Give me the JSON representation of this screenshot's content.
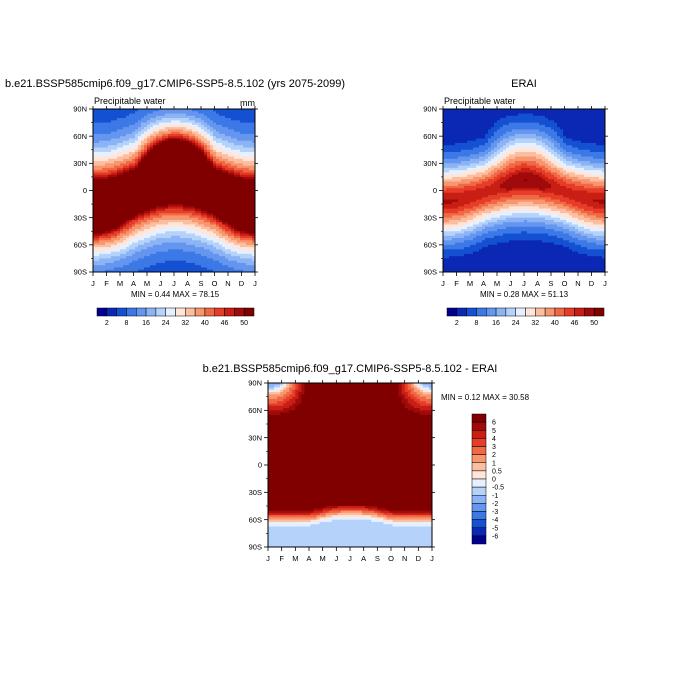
{
  "colors": {
    "ramp": [
      "#00008c",
      "#0a28b4",
      "#1450d2",
      "#3c78e6",
      "#6496f0",
      "#8cb4f5",
      "#b4d2fa",
      "#e6f0ff",
      "#ffe6d8",
      "#fcbea0",
      "#f8966e",
      "#f06946",
      "#e63c28",
      "#c81e14",
      "#a00a0a",
      "#800000"
    ],
    "diff_ramp": [
      "#00008c",
      "#0a28b4",
      "#1450d2",
      "#3c78e6",
      "#6496f0",
      "#8cb4f5",
      "#b4d2fa",
      "#e6f0ff",
      "#ffe6d8",
      "#fcbea0",
      "#f8966e",
      "#f06946",
      "#e63c28",
      "#c81e14",
      "#a00a0a",
      "#800000"
    ]
  },
  "chart_data": [
    {
      "type": "heatmap",
      "title": "b.e21.BSSP585cmip6.f09_g17.CMIP6-SSP5-8.5.102 (yrs 2075-2099)",
      "subtitle": "Precipitable water",
      "units": "mm",
      "x_ticks": [
        "J",
        "F",
        "M",
        "A",
        "M",
        "J",
        "J",
        "A",
        "S",
        "O",
        "N",
        "D",
        "J"
      ],
      "y_ticks": [
        "90N",
        "60N",
        "30N",
        "0",
        "30S",
        "60S",
        "90S"
      ],
      "ylim": [
        -90,
        90
      ],
      "min_max_text": "MIN =   0.44 MAX =  78.15",
      "min": 0.44,
      "max": 78.15,
      "colorbar_labels": [
        "2",
        "8",
        "16",
        "24",
        "32",
        "40",
        "46",
        "50"
      ],
      "field": {
        "eq_value": 62,
        "pole_value": 4,
        "width_deg": 38,
        "itcz_amp_deg": 12,
        "nh_boost": 22,
        "peak_month": 7.1
      }
    },
    {
      "type": "heatmap",
      "title": "ERAI",
      "subtitle": "Precipitable water",
      "x_ticks": [
        "J",
        "F",
        "M",
        "A",
        "M",
        "J",
        "J",
        "A",
        "S",
        "O",
        "N",
        "D",
        "J"
      ],
      "y_ticks": [
        "90N",
        "60N",
        "30N",
        "0",
        "30S",
        "60S",
        "90S"
      ],
      "ylim": [
        -90,
        90
      ],
      "min_max_text": "MIN =   0.28 MAX =  51.13",
      "min": 0.28,
      "max": 51.13,
      "colorbar_labels": [
        "2",
        "8",
        "16",
        "24",
        "32",
        "40",
        "46",
        "50"
      ],
      "field": {
        "eq_value": 47,
        "pole_value": 2,
        "width_deg": 26,
        "itcz_amp_deg": 8,
        "nh_boost": 14,
        "peak_month": 7.1
      }
    },
    {
      "type": "heatmap",
      "title": "b.e21.BSSP585cmip6.f09_g17.CMIP6-SSP5-8.5.102 - ERAI",
      "x_ticks": [
        "J",
        "F",
        "M",
        "A",
        "M",
        "J",
        "J",
        "A",
        "S",
        "O",
        "N",
        "D",
        "J"
      ],
      "y_ticks": [
        "90N",
        "60N",
        "30N",
        "0",
        "30S",
        "60S",
        "90S"
      ],
      "ylim": [
        -90,
        90
      ],
      "min_max_text": "MIN =   0.12 MAX =  30.58",
      "min": 0.12,
      "max": 30.58,
      "colorbar_labels": [
        "6",
        "5",
        "4",
        "3",
        "2",
        "1",
        "0.5",
        "0",
        "-0.5",
        "-1",
        "-2",
        "-3",
        "-4",
        "-5",
        "-6"
      ],
      "colorbar_levels": [
        6,
        5,
        4,
        3,
        2,
        1,
        0.5,
        0,
        -0.5,
        -1,
        -2,
        -3,
        -4,
        -5,
        -6
      ]
    }
  ]
}
